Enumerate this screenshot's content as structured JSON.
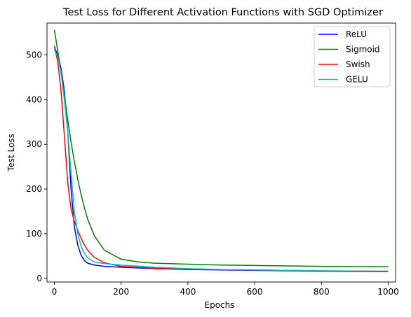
{
  "chart_data": {
    "type": "line",
    "title": "Test Loss for Different Activation Functions with SGD Optimizer",
    "xlabel": "Epochs",
    "ylabel": "Test Loss",
    "xlim": [
      -22,
      1022
    ],
    "ylim": [
      -8,
      571
    ],
    "xticks": [
      0,
      200,
      400,
      600,
      800,
      1000
    ],
    "yticks": [
      0,
      100,
      200,
      300,
      400,
      500
    ],
    "grid": false,
    "legend_position": "top-right",
    "series": [
      {
        "name": "ReLU",
        "color": "#0000ff",
        "x": [
          0,
          10,
          20,
          30,
          40,
          50,
          60,
          70,
          80,
          90,
          100,
          120,
          150,
          200,
          300,
          400,
          500,
          600,
          700,
          800,
          900,
          1000
        ],
        "y": [
          518,
          500,
          470,
          420,
          330,
          200,
          115,
          75,
          52,
          40,
          34,
          30,
          27,
          25,
          22,
          20,
          19,
          18,
          17,
          16,
          15.5,
          15
        ]
      },
      {
        "name": "Sigmoid",
        "color": "#008000",
        "x": [
          0,
          10,
          20,
          30,
          40,
          50,
          60,
          70,
          80,
          90,
          100,
          120,
          150,
          200,
          250,
          300,
          400,
          500,
          600,
          700,
          800,
          900,
          1000
        ],
        "y": [
          556,
          510,
          460,
          410,
          355,
          305,
          262,
          222,
          188,
          158,
          132,
          95,
          63,
          43,
          37,
          34,
          32,
          30,
          29,
          28,
          27,
          26.5,
          26
        ]
      },
      {
        "name": "Swish",
        "color": "#ff0000",
        "x": [
          0,
          10,
          20,
          30,
          40,
          50,
          60,
          70,
          80,
          90,
          100,
          120,
          150,
          200,
          300,
          400,
          500,
          600,
          700,
          800,
          900,
          1000
        ],
        "y": [
          520,
          485,
          420,
          320,
          215,
          155,
          128,
          108,
          90,
          75,
          63,
          47,
          35,
          27,
          23,
          21,
          20,
          19,
          18,
          17,
          16.5,
          16
        ]
      },
      {
        "name": "GELU",
        "color": "#00bfbf",
        "x": [
          0,
          10,
          20,
          30,
          40,
          50,
          60,
          70,
          80,
          90,
          100,
          120,
          150,
          200,
          300,
          400,
          500,
          600,
          700,
          800,
          900,
          1000
        ],
        "y": [
          512,
          495,
          460,
          400,
          330,
          235,
          150,
          100,
          72,
          56,
          46,
          37,
          33,
          30,
          25,
          22,
          20,
          19,
          18,
          17,
          16.5,
          16
        ]
      }
    ]
  }
}
